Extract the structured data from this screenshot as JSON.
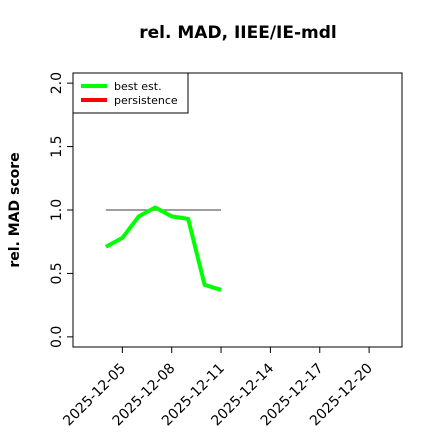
{
  "chart_data": {
    "type": "line",
    "title": "rel. MAD, IIEE/IE-mdl",
    "y_label": "rel. MAD score",
    "x": [
      "2025-12-04",
      "2025-12-05",
      "2025-12-06",
      "2025-12-07",
      "2025-12-08",
      "2025-12-09",
      "2025-12-10",
      "2025-12-11"
    ],
    "series": [
      {
        "name": "best est.",
        "color": "#00ff00",
        "values": [
          0.71,
          0.78,
          0.95,
          1.02,
          0.95,
          0.93,
          0.41,
          0.37
        ]
      },
      {
        "name": "persistence",
        "color": "#ff0000",
        "values": [
          null,
          null,
          null,
          null,
          null,
          null,
          null,
          null
        ]
      }
    ],
    "reference_line": {
      "y": 1.0,
      "x": [
        "2025-12-04",
        "2025-12-11"
      ],
      "color": "#666666"
    },
    "xlim": [
      "2025-12-02",
      "2025-12-22"
    ],
    "xticks": [
      "2025-12-05",
      "2025-12-08",
      "2025-12-11",
      "2025-12-14",
      "2025-12-17",
      "2025-12-20"
    ],
    "ylim": [
      -0.08,
      2.08
    ],
    "yticks": [
      {
        "value": 0,
        "label": "0.0"
      },
      {
        "value": 0.5,
        "label": "0.5"
      },
      {
        "value": 1,
        "label": "1.0"
      },
      {
        "value": 1.5,
        "label": "1.5"
      },
      {
        "value": 2,
        "label": "2.0"
      }
    ],
    "legend": "top-left"
  }
}
